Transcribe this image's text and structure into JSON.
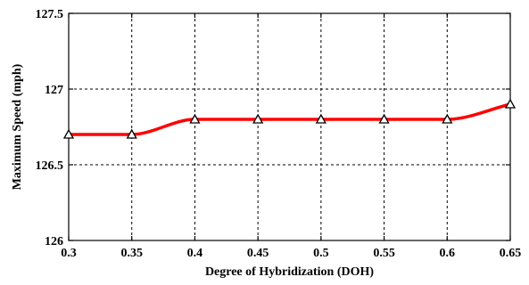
{
  "chart_data": {
    "type": "line",
    "title": "",
    "xlabel": "Degree of Hybridization (DOH)",
    "ylabel": "Maximum Speed (mph)",
    "xlim": [
      0.3,
      0.65
    ],
    "ylim": [
      126,
      127.5
    ],
    "xticks": [
      "0.3",
      "0.35",
      "0.4",
      "0.45",
      "0.5",
      "0.55",
      "0.6",
      "0.65"
    ],
    "yticks": [
      "126",
      "126.5",
      "127",
      "127.5"
    ],
    "grid": true,
    "series": [
      {
        "color": "#ff0000",
        "marker": "triangle",
        "x": [
          0.3,
          0.35,
          0.4,
          0.45,
          0.5,
          0.55,
          0.6,
          0.65
        ],
        "y": [
          126.7,
          126.7,
          126.8,
          126.8,
          126.8,
          126.8,
          126.8,
          126.9
        ]
      }
    ]
  }
}
